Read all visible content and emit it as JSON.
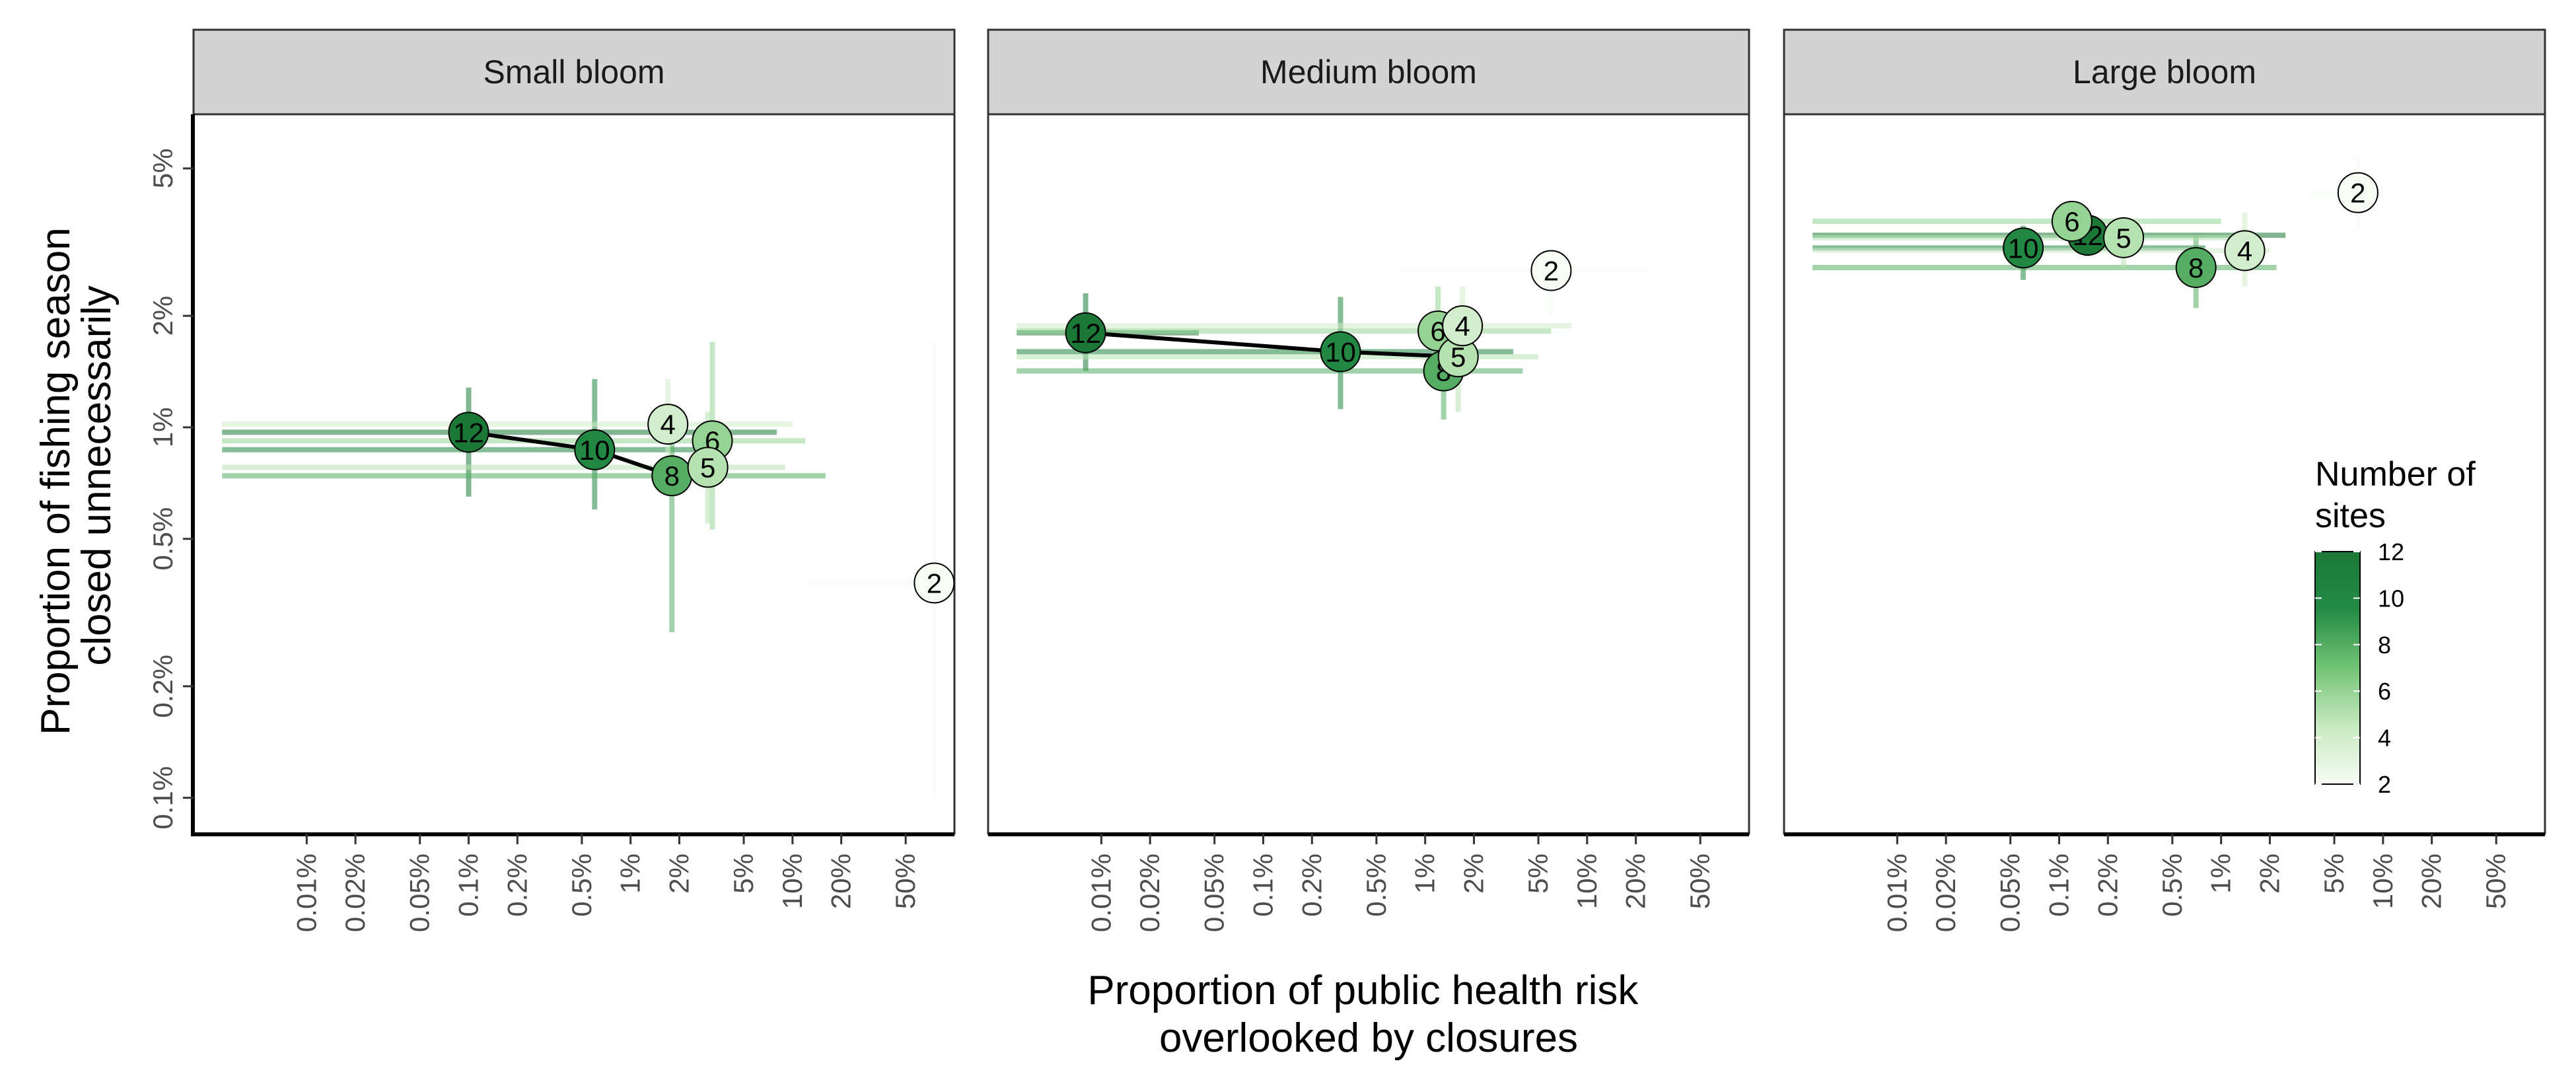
{
  "chart_data": {
    "type": "scatter",
    "x_label_lines": [
      "Proportion of public health risk",
      "overlooked by closures"
    ],
    "y_label_lines": [
      "Proportion of fishing season",
      "closed unnecessarily"
    ],
    "x_scale": "log10",
    "y_scale": "log10",
    "x_range_percent": [
      0.002,
      100
    ],
    "y_range_percent": [
      0.08,
      7
    ],
    "x_ticks": [
      {
        "value": 0.01,
        "label": "0.01%"
      },
      {
        "value": 0.02,
        "label": "0.02%"
      },
      {
        "value": 0.05,
        "label": "0.05%"
      },
      {
        "value": 0.1,
        "label": "0.1%"
      },
      {
        "value": 0.2,
        "label": "0.2%"
      },
      {
        "value": 0.5,
        "label": "0.5%"
      },
      {
        "value": 1,
        "label": "1%"
      },
      {
        "value": 2,
        "label": "2%"
      },
      {
        "value": 5,
        "label": "5%"
      },
      {
        "value": 10,
        "label": "10%"
      },
      {
        "value": 20,
        "label": "20%"
      },
      {
        "value": 50,
        "label": "50%"
      }
    ],
    "y_ticks": [
      {
        "value": 0.1,
        "label": "0.1%"
      },
      {
        "value": 0.2,
        "label": "0.2%"
      },
      {
        "value": 0.5,
        "label": "0.5%"
      },
      {
        "value": 1,
        "label": "1%"
      },
      {
        "value": 2,
        "label": "2%"
      },
      {
        "value": 5,
        "label": "5%"
      }
    ],
    "grid": false,
    "legend": {
      "title_lines": [
        "Number of",
        "sites"
      ],
      "position": "right, inside last panel",
      "type": "colorbar",
      "min": 2,
      "max": 12,
      "breaks": [
        2,
        4,
        6,
        8,
        10,
        12
      ],
      "colors": [
        "#f7fcf5",
        "#c7e9c0",
        "#74c476",
        "#238b45",
        "#1b7837"
      ]
    },
    "panels": [
      {
        "name": "Small bloom",
        "points": [
          {
            "sites": 12,
            "x": 0.1,
            "y": 0.97,
            "x_lo": 0.003,
            "x_hi": 8,
            "y_lo": 0.65,
            "y_hi": 1.28
          },
          {
            "sites": 10,
            "x": 0.6,
            "y": 0.87,
            "x_lo": 0.003,
            "x_hi": 3.5,
            "y_lo": 0.6,
            "y_hi": 1.35
          },
          {
            "sites": 8,
            "x": 1.8,
            "y": 0.74,
            "x_lo": 0.003,
            "x_hi": 16,
            "y_lo": 0.28,
            "y_hi": 1.0
          },
          {
            "sites": 6,
            "x": 3.2,
            "y": 0.92,
            "x_lo": 0.003,
            "x_hi": 12,
            "y_lo": 0.53,
            "y_hi": 1.7
          },
          {
            "sites": 5,
            "x": 3.0,
            "y": 0.78,
            "x_lo": 0.003,
            "x_hi": 9,
            "y_lo": 0.55,
            "y_hi": 1.1
          },
          {
            "sites": 4,
            "x": 1.7,
            "y": 1.02,
            "x_lo": 0.003,
            "x_hi": 10,
            "y_lo": 0.7,
            "y_hi": 1.35
          },
          {
            "sites": 2,
            "x": 75,
            "y": 0.38,
            "x_lo": 12,
            "x_hi": 75,
            "y_lo": 0.1,
            "y_hi": 1.7
          }
        ],
        "trend_sites": [
          12,
          10,
          8
        ]
      },
      {
        "name": "Medium bloom",
        "points": [
          {
            "sites": 12,
            "x": 0.008,
            "y": 1.8,
            "x_lo": 0.003,
            "x_hi": 0.04,
            "y_lo": 1.42,
            "y_hi": 2.3
          },
          {
            "sites": 10,
            "x": 0.3,
            "y": 1.6,
            "x_lo": 0.003,
            "x_hi": 3.5,
            "y_lo": 1.12,
            "y_hi": 2.25
          },
          {
            "sites": 8,
            "x": 1.3,
            "y": 1.42,
            "x_lo": 0.003,
            "x_hi": 4,
            "y_lo": 1.05,
            "y_hi": 1.95
          },
          {
            "sites": 6,
            "x": 1.2,
            "y": 1.82,
            "x_lo": 0.003,
            "x_hi": 6,
            "y_lo": 1.3,
            "y_hi": 2.4
          },
          {
            "sites": 5,
            "x": 1.6,
            "y": 1.55,
            "x_lo": 0.003,
            "x_hi": 5,
            "y_lo": 1.1,
            "y_hi": 2.1
          },
          {
            "sites": 4,
            "x": 1.7,
            "y": 1.88,
            "x_lo": 0.003,
            "x_hi": 8,
            "y_lo": 1.4,
            "y_hi": 2.4
          },
          {
            "sites": 2,
            "x": 6,
            "y": 2.65,
            "x_lo": 0.7,
            "x_hi": 25,
            "y_lo": 2.0,
            "y_hi": 3.1
          }
        ],
        "trend_sites": [
          12,
          10,
          5
        ]
      },
      {
        "name": "Large bloom",
        "points": [
          {
            "sites": 12,
            "x": 0.15,
            "y": 3.3,
            "x_lo": 0.003,
            "x_hi": 2.5,
            "y_lo": 2.9,
            "y_hi": 3.7
          },
          {
            "sites": 10,
            "x": 0.06,
            "y": 3.05,
            "x_lo": 0.003,
            "x_hi": 0.8,
            "y_lo": 2.5,
            "y_hi": 3.5
          },
          {
            "sites": 8,
            "x": 0.7,
            "y": 2.7,
            "x_lo": 0.003,
            "x_hi": 2.2,
            "y_lo": 2.1,
            "y_hi": 3.3
          },
          {
            "sites": 6,
            "x": 0.12,
            "y": 3.6,
            "x_lo": 0.003,
            "x_hi": 1.0,
            "y_lo": 3.1,
            "y_hi": 4.0
          },
          {
            "sites": 5,
            "x": 0.25,
            "y": 3.25,
            "x_lo": 0.003,
            "x_hi": 1.2,
            "y_lo": 2.7,
            "y_hi": 3.7
          },
          {
            "sites": 4,
            "x": 1.4,
            "y": 3.0,
            "x_lo": 0.003,
            "x_hi": 2.0,
            "y_lo": 2.4,
            "y_hi": 3.8
          },
          {
            "sites": 2,
            "x": 7,
            "y": 4.3,
            "x_lo": 3.5,
            "x_hi": 10,
            "y_lo": 3.4,
            "y_hi": 5.4
          }
        ],
        "trend_sites": [
          12
        ]
      }
    ]
  }
}
